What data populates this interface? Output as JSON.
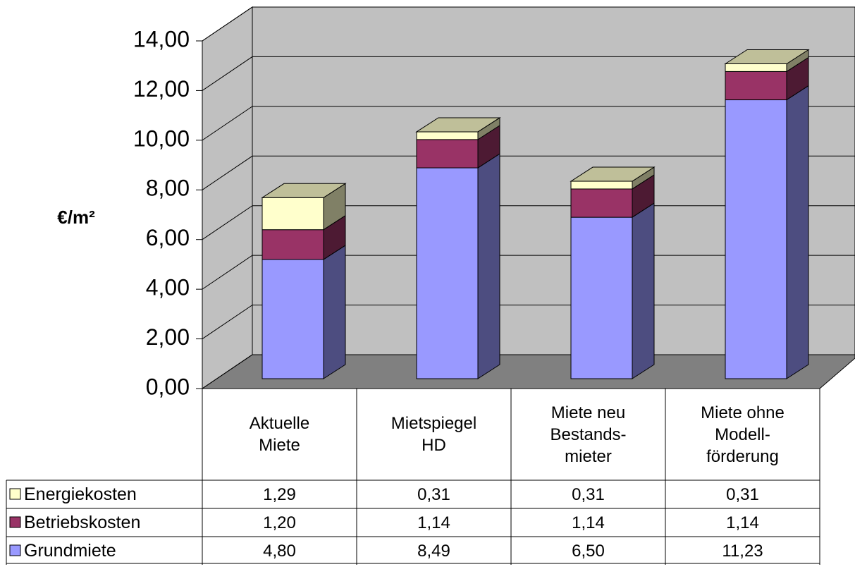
{
  "chart_data": {
    "type": "bar",
    "stacked": true,
    "three_d": true,
    "y_label": "€/m²",
    "categories": [
      "Aktuelle\nMiete",
      "Mietspiegel\nHD",
      "Miete neu\nBestands-\nmieter",
      "Miete ohne\nModell-\nförderung"
    ],
    "series": [
      {
        "name": "Grundmiete",
        "color": "#9999ff",
        "values": [
          4.8,
          8.49,
          6.5,
          11.23
        ],
        "value_labels": [
          "4,80",
          "8,49",
          "6,50",
          "11,23"
        ]
      },
      {
        "name": "Betriebskosten",
        "color": "#993366",
        "values": [
          1.2,
          1.14,
          1.14,
          1.14
        ],
        "value_labels": [
          "1,20",
          "1,14",
          "1,14",
          "1,14"
        ]
      },
      {
        "name": "Energiekosten",
        "color": "#ffffcc",
        "values": [
          1.29,
          0.31,
          0.31,
          0.31
        ],
        "value_labels": [
          "1,29",
          "0,31",
          "0,31",
          "0,31"
        ]
      }
    ],
    "ylim": [
      0,
      14
    ],
    "yticks": [
      {
        "value": 0,
        "label": "0,00"
      },
      {
        "value": 2,
        "label": "2,00"
      },
      {
        "value": 4,
        "label": "4,00"
      },
      {
        "value": 6,
        "label": "6,00"
      },
      {
        "value": 8,
        "label": "8,00"
      },
      {
        "value": 10,
        "label": "10,00"
      },
      {
        "value": 12,
        "label": "12,00"
      },
      {
        "value": 14,
        "label": "14,00"
      }
    ],
    "grid": true
  }
}
